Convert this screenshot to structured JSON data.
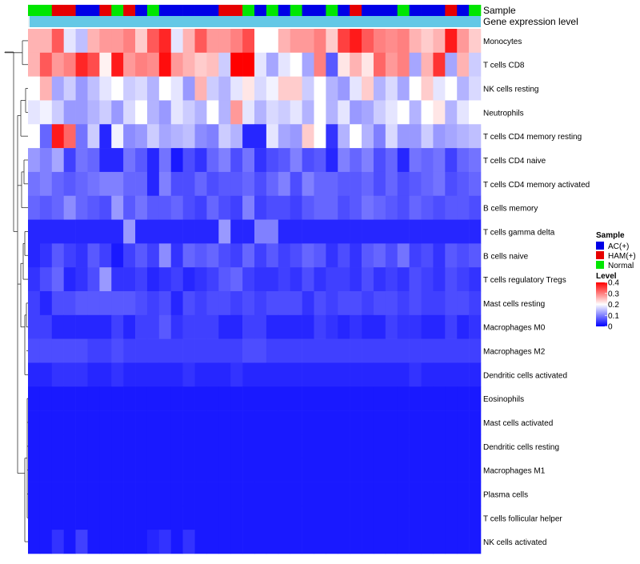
{
  "chart_data": {
    "type": "heatmap",
    "annotation_rows": [
      "Sample",
      "Gene expression level"
    ],
    "gene_expression_color": "#64c8e6",
    "rows": [
      "Monocytes",
      "T cells CD8",
      "NK cells resting",
      "Neutrophils",
      "T cells CD4 memory resting",
      "T cells CD4 naive",
      "T cells CD4 memory activated",
      "B cells memory",
      "T cells gamma delta",
      "B cells naive",
      "T cells regulatory  Tregs",
      "Mast cells resting",
      "Macrophages M0",
      "Macrophages M2",
      "Dendritic cells activated",
      "Eosinophils",
      "Mast cells activated",
      "Dendritic cells resting",
      "Macrophages M1",
      "Plasma cells",
      "T cells follicular helper",
      "NK cells activated"
    ],
    "sample_groups": [
      "Normal",
      "Normal",
      "HAM(+)",
      "HAM(+)",
      "AC(+)",
      "AC(+)",
      "HAM(+)",
      "Normal",
      "HAM(+)",
      "AC(+)",
      "Normal",
      "AC(+)",
      "AC(+)",
      "AC(+)",
      "AC(+)",
      "AC(+)",
      "HAM(+)",
      "HAM(+)",
      "Normal",
      "AC(+)",
      "Normal",
      "AC(+)",
      "Normal",
      "AC(+)",
      "AC(+)",
      "Normal",
      "AC(+)",
      "HAM(+)",
      "AC(+)",
      "AC(+)",
      "AC(+)",
      "Normal",
      "AC(+)",
      "AC(+)",
      "AC(+)",
      "HAM(+)",
      "AC(+)",
      "Normal"
    ],
    "values": [
      [
        0.26,
        0.26,
        0.33,
        0.18,
        0.15,
        0.26,
        0.28,
        0.28,
        0.3,
        0.24,
        0.33,
        0.37,
        0.18,
        0.26,
        0.33,
        0.28,
        0.28,
        0.3,
        0.34,
        0.2,
        0.2,
        0.26,
        0.28,
        0.28,
        0.3,
        0.24,
        0.35,
        0.38,
        0.33,
        0.3,
        0.29,
        0.3,
        0.26,
        0.24,
        0.26,
        0.38,
        0.28,
        0.24
      ],
      [
        0.26,
        0.33,
        0.28,
        0.3,
        0.37,
        0.34,
        0.21,
        0.38,
        0.28,
        0.3,
        0.29,
        0.39,
        0.28,
        0.26,
        0.24,
        0.25,
        0.16,
        0.4,
        0.4,
        0.18,
        0.13,
        0.18,
        0.2,
        0.13,
        0.3,
        0.07,
        0.22,
        0.26,
        0.22,
        0.32,
        0.28,
        0.3,
        0.13,
        0.26,
        0.36,
        0.13,
        0.26,
        0.16
      ],
      [
        0.2,
        0.26,
        0.13,
        0.16,
        0.12,
        0.15,
        0.18,
        0.2,
        0.16,
        0.17,
        0.14,
        0.2,
        0.18,
        0.12,
        0.26,
        0.16,
        0.14,
        0.18,
        0.22,
        0.17,
        0.19,
        0.24,
        0.24,
        0.16,
        0.2,
        0.14,
        0.12,
        0.18,
        0.24,
        0.14,
        0.17,
        0.13,
        0.2,
        0.24,
        0.18,
        0.2,
        0.14,
        0.17
      ],
      [
        0.18,
        0.19,
        0.16,
        0.12,
        0.12,
        0.14,
        0.16,
        0.12,
        0.17,
        0.2,
        0.14,
        0.12,
        0.18,
        0.16,
        0.14,
        0.2,
        0.14,
        0.28,
        0.18,
        0.14,
        0.17,
        0.16,
        0.18,
        0.14,
        0.2,
        0.14,
        0.18,
        0.12,
        0.13,
        0.16,
        0.18,
        0.2,
        0.14,
        0.2,
        0.22,
        0.14,
        0.18,
        0.2
      ],
      [
        0.2,
        0.08,
        0.38,
        0.32,
        0.09,
        0.16,
        0.03,
        0.19,
        0.11,
        0.12,
        0.16,
        0.13,
        0.14,
        0.15,
        0.11,
        0.1,
        0.16,
        0.14,
        0.03,
        0.03,
        0.18,
        0.13,
        0.12,
        0.24,
        0.2,
        0.04,
        0.14,
        0.2,
        0.14,
        0.1,
        0.17,
        0.12,
        0.12,
        0.16,
        0.12,
        0.13,
        0.14,
        0.15
      ],
      [
        0.12,
        0.1,
        0.13,
        0.05,
        0.09,
        0.08,
        0.03,
        0.03,
        0.09,
        0.07,
        0.03,
        0.09,
        0.02,
        0.06,
        0.04,
        0.08,
        0.1,
        0.06,
        0.09,
        0.04,
        0.06,
        0.07,
        0.1,
        0.06,
        0.07,
        0.03,
        0.1,
        0.08,
        0.1,
        0.06,
        0.08,
        0.03,
        0.09,
        0.08,
        0.09,
        0.05,
        0.08,
        0.09
      ],
      [
        0.09,
        0.1,
        0.08,
        0.07,
        0.08,
        0.09,
        0.1,
        0.1,
        0.08,
        0.08,
        0.03,
        0.1,
        0.06,
        0.06,
        0.08,
        0.06,
        0.07,
        0.07,
        0.08,
        0.06,
        0.08,
        0.1,
        0.06,
        0.1,
        0.08,
        0.08,
        0.07,
        0.07,
        0.08,
        0.06,
        0.08,
        0.06,
        0.07,
        0.08,
        0.09,
        0.06,
        0.07,
        0.08
      ],
      [
        0.08,
        0.07,
        0.08,
        0.11,
        0.08,
        0.07,
        0.06,
        0.12,
        0.07,
        0.09,
        0.07,
        0.07,
        0.08,
        0.06,
        0.05,
        0.08,
        0.06,
        0.05,
        0.1,
        0.05,
        0.06,
        0.06,
        0.05,
        0.07,
        0.08,
        0.08,
        0.06,
        0.07,
        0.09,
        0.08,
        0.07,
        0.06,
        0.08,
        0.07,
        0.06,
        0.07,
        0.07,
        0.06
      ],
      [
        0.03,
        0.03,
        0.03,
        0.03,
        0.03,
        0.03,
        0.03,
        0.03,
        0.12,
        0.03,
        0.03,
        0.03,
        0.03,
        0.03,
        0.03,
        0.03,
        0.12,
        0.03,
        0.03,
        0.1,
        0.1,
        0.03,
        0.03,
        0.03,
        0.03,
        0.03,
        0.03,
        0.03,
        0.03,
        0.03,
        0.03,
        0.03,
        0.03,
        0.03,
        0.03,
        0.03,
        0.03,
        0.03
      ],
      [
        0.03,
        0.04,
        0.07,
        0.05,
        0.04,
        0.07,
        0.05,
        0.02,
        0.05,
        0.07,
        0.05,
        0.11,
        0.04,
        0.08,
        0.07,
        0.08,
        0.06,
        0.05,
        0.08,
        0.05,
        0.07,
        0.05,
        0.06,
        0.08,
        0.07,
        0.04,
        0.06,
        0.04,
        0.07,
        0.08,
        0.06,
        0.09,
        0.05,
        0.06,
        0.04,
        0.07,
        0.06,
        0.07
      ],
      [
        0.04,
        0.06,
        0.08,
        0.03,
        0.04,
        0.06,
        0.12,
        0.04,
        0.04,
        0.05,
        0.03,
        0.04,
        0.05,
        0.03,
        0.04,
        0.05,
        0.07,
        0.08,
        0.05,
        0.04,
        0.04,
        0.05,
        0.04,
        0.06,
        0.04,
        0.05,
        0.05,
        0.04,
        0.06,
        0.04,
        0.05,
        0.04,
        0.06,
        0.05,
        0.04,
        0.06,
        0.05,
        0.04
      ],
      [
        0.05,
        0.03,
        0.06,
        0.06,
        0.07,
        0.07,
        0.07,
        0.07,
        0.07,
        0.06,
        0.05,
        0.06,
        0.03,
        0.06,
        0.05,
        0.06,
        0.06,
        0.05,
        0.06,
        0.05,
        0.06,
        0.06,
        0.06,
        0.04,
        0.06,
        0.05,
        0.06,
        0.06,
        0.05,
        0.06,
        0.06,
        0.05,
        0.06,
        0.05,
        0.05,
        0.06,
        0.06,
        0.05
      ],
      [
        0.05,
        0.05,
        0.03,
        0.03,
        0.03,
        0.03,
        0.03,
        0.05,
        0.03,
        0.05,
        0.05,
        0.07,
        0.04,
        0.05,
        0.05,
        0.05,
        0.03,
        0.03,
        0.05,
        0.05,
        0.03,
        0.03,
        0.03,
        0.03,
        0.05,
        0.04,
        0.03,
        0.04,
        0.03,
        0.03,
        0.05,
        0.04,
        0.04,
        0.03,
        0.03,
        0.05,
        0.03,
        0.04
      ],
      [
        0.06,
        0.06,
        0.06,
        0.06,
        0.06,
        0.05,
        0.05,
        0.06,
        0.05,
        0.05,
        0.05,
        0.05,
        0.05,
        0.05,
        0.05,
        0.05,
        0.05,
        0.05,
        0.06,
        0.06,
        0.05,
        0.05,
        0.05,
        0.05,
        0.05,
        0.05,
        0.05,
        0.05,
        0.05,
        0.05,
        0.05,
        0.05,
        0.05,
        0.05,
        0.05,
        0.05,
        0.05,
        0.05
      ],
      [
        0.03,
        0.03,
        0.04,
        0.04,
        0.04,
        0.03,
        0.03,
        0.04,
        0.03,
        0.03,
        0.03,
        0.03,
        0.03,
        0.04,
        0.03,
        0.03,
        0.03,
        0.04,
        0.03,
        0.03,
        0.03,
        0.03,
        0.03,
        0.03,
        0.03,
        0.03,
        0.03,
        0.03,
        0.03,
        0.03,
        0.03,
        0.03,
        0.04,
        0.03,
        0.03,
        0.03,
        0.03,
        0.03
      ],
      [
        0.02,
        0.02,
        0.02,
        0.02,
        0.02,
        0.02,
        0.02,
        0.02,
        0.02,
        0.02,
        0.02,
        0.02,
        0.02,
        0.02,
        0.02,
        0.02,
        0.02,
        0.02,
        0.02,
        0.02,
        0.02,
        0.02,
        0.02,
        0.02,
        0.02,
        0.02,
        0.02,
        0.02,
        0.02,
        0.02,
        0.02,
        0.02,
        0.02,
        0.02,
        0.02,
        0.02,
        0.02,
        0.02
      ],
      [
        0.02,
        0.02,
        0.02,
        0.02,
        0.02,
        0.02,
        0.02,
        0.02,
        0.02,
        0.02,
        0.02,
        0.02,
        0.02,
        0.02,
        0.02,
        0.02,
        0.02,
        0.02,
        0.02,
        0.02,
        0.02,
        0.02,
        0.02,
        0.02,
        0.02,
        0.02,
        0.02,
        0.02,
        0.02,
        0.02,
        0.02,
        0.02,
        0.02,
        0.02,
        0.02,
        0.02,
        0.02,
        0.02
      ],
      [
        0.02,
        0.02,
        0.02,
        0.02,
        0.02,
        0.02,
        0.02,
        0.02,
        0.02,
        0.02,
        0.02,
        0.02,
        0.02,
        0.02,
        0.02,
        0.02,
        0.02,
        0.02,
        0.02,
        0.02,
        0.02,
        0.02,
        0.02,
        0.02,
        0.02,
        0.02,
        0.02,
        0.02,
        0.02,
        0.02,
        0.02,
        0.02,
        0.02,
        0.02,
        0.02,
        0.02,
        0.02,
        0.02
      ],
      [
        0.02,
        0.02,
        0.02,
        0.02,
        0.02,
        0.02,
        0.02,
        0.02,
        0.02,
        0.02,
        0.02,
        0.02,
        0.02,
        0.02,
        0.02,
        0.02,
        0.02,
        0.02,
        0.02,
        0.02,
        0.02,
        0.02,
        0.02,
        0.02,
        0.02,
        0.02,
        0.02,
        0.02,
        0.02,
        0.02,
        0.02,
        0.02,
        0.02,
        0.02,
        0.02,
        0.02,
        0.02,
        0.02
      ],
      [
        0.02,
        0.02,
        0.02,
        0.02,
        0.02,
        0.02,
        0.02,
        0.02,
        0.02,
        0.02,
        0.02,
        0.02,
        0.02,
        0.02,
        0.02,
        0.02,
        0.02,
        0.02,
        0.02,
        0.02,
        0.02,
        0.02,
        0.02,
        0.02,
        0.02,
        0.02,
        0.02,
        0.02,
        0.02,
        0.02,
        0.02,
        0.02,
        0.02,
        0.02,
        0.02,
        0.02,
        0.02,
        0.02
      ],
      [
        0.02,
        0.02,
        0.02,
        0.02,
        0.02,
        0.02,
        0.02,
        0.02,
        0.02,
        0.02,
        0.02,
        0.02,
        0.02,
        0.02,
        0.02,
        0.02,
        0.02,
        0.02,
        0.02,
        0.02,
        0.02,
        0.02,
        0.02,
        0.02,
        0.02,
        0.02,
        0.02,
        0.02,
        0.02,
        0.02,
        0.02,
        0.02,
        0.02,
        0.02,
        0.02,
        0.02,
        0.02,
        0.02
      ],
      [
        0.02,
        0.02,
        0.04,
        0.02,
        0.05,
        0.02,
        0.02,
        0.02,
        0.02,
        0.02,
        0.03,
        0.04,
        0.02,
        0.04,
        0.02,
        0.02,
        0.02,
        0.02,
        0.02,
        0.02,
        0.02,
        0.02,
        0.02,
        0.02,
        0.02,
        0.02,
        0.02,
        0.02,
        0.02,
        0.02,
        0.02,
        0.02,
        0.02,
        0.02,
        0.02,
        0.02,
        0.02,
        0.02
      ]
    ],
    "legend_sample": {
      "title": "Sample",
      "entries": [
        {
          "label": "AC(+)",
          "color": "#0000e6"
        },
        {
          "label": "HAM(+)",
          "color": "#e60000"
        },
        {
          "label": "Normal",
          "color": "#00e600"
        }
      ]
    },
    "legend_level": {
      "title": "Level",
      "ticks": [
        "0.4",
        "0.3",
        "0.2",
        "0.1",
        "0"
      ],
      "tick_values": [
        0.4,
        0.3,
        0.2,
        0.1,
        0
      ],
      "range": [
        0,
        0.4
      ],
      "colors": {
        "low": "#0000ff",
        "mid": "#ffffff",
        "high": "#ff0000"
      },
      "midpoint": 0.2
    }
  }
}
